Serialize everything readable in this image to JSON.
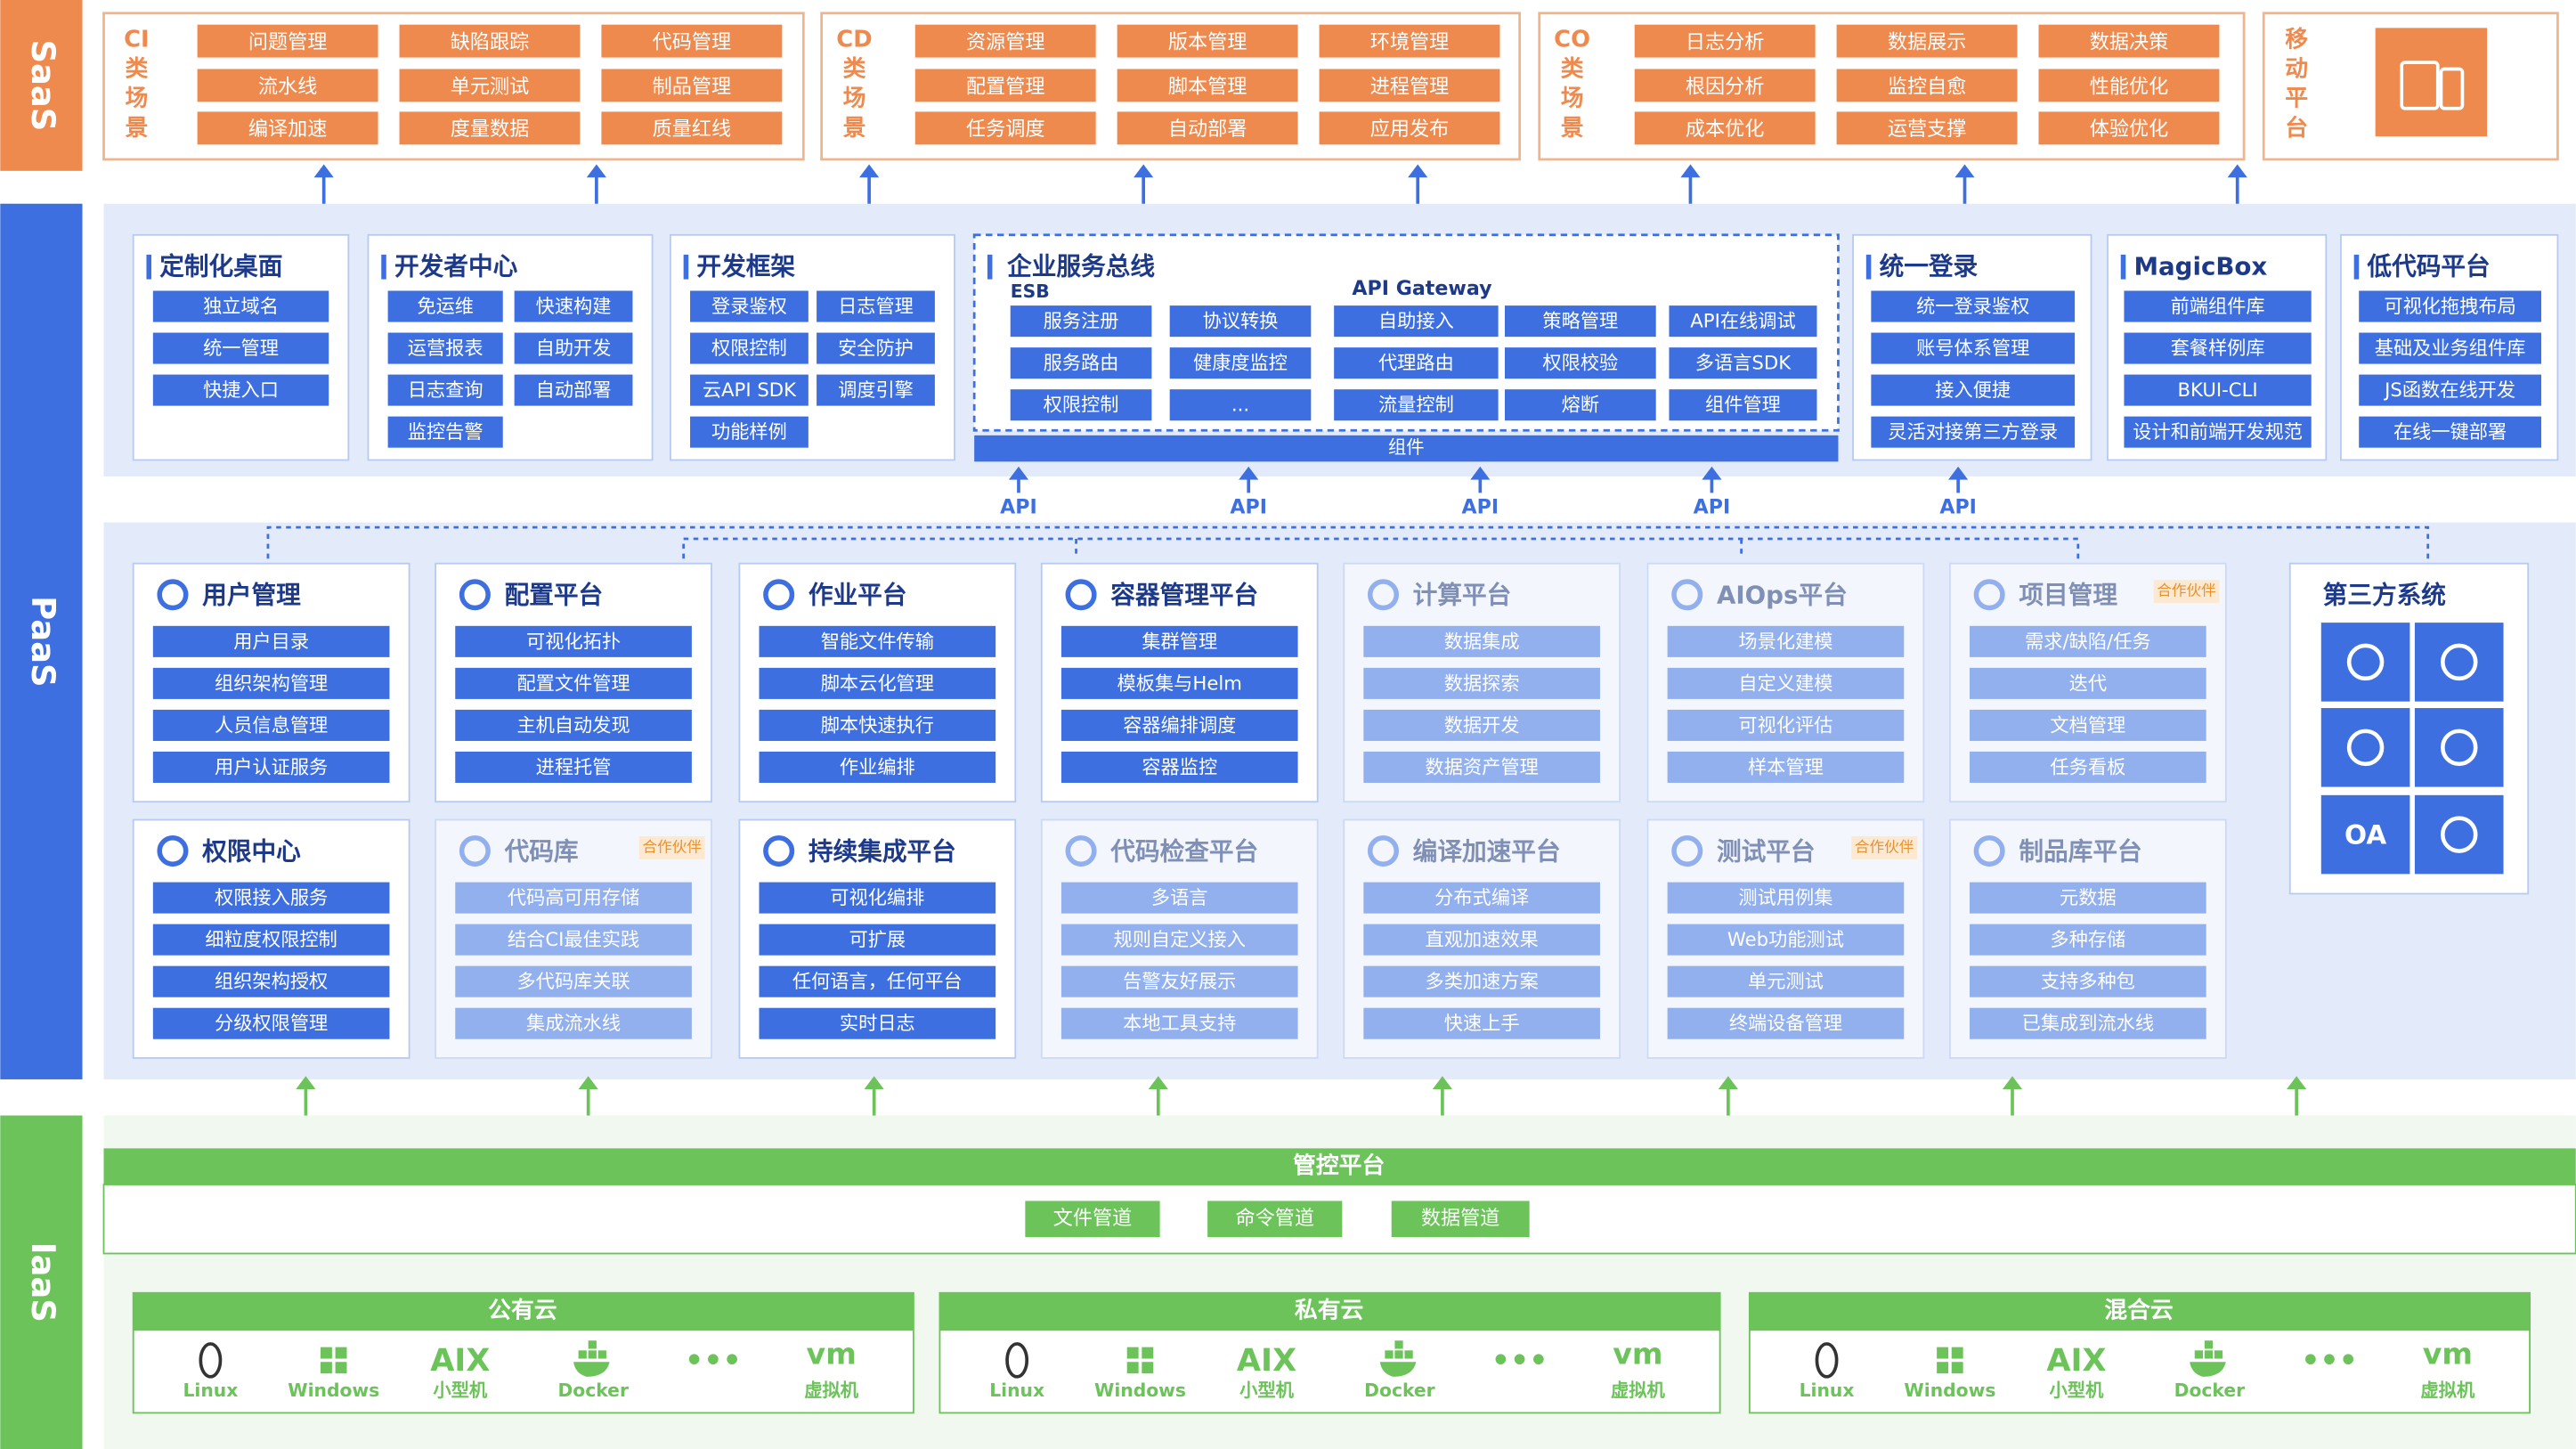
{
  "layers": {
    "saas": "SaaS",
    "paas": "PaaS",
    "iaas": "IaaS"
  },
  "saas": [
    {
      "label": "CI类场景",
      "items": [
        "问题管理",
        "缺陷跟踪",
        "代码管理",
        "流水线",
        "单元测试",
        "制品管理",
        "编译加速",
        "度量数据",
        "质量红线"
      ]
    },
    {
      "label": "CD类场景",
      "items": [
        "资源管理",
        "版本管理",
        "环境管理",
        "配置管理",
        "脚本管理",
        "进程管理",
        "任务调度",
        "自动部署",
        "应用发布"
      ]
    },
    {
      "label": "CO类场景",
      "items": [
        "日志分析",
        "数据展示",
        "数据决策",
        "根因分析",
        "监控自愈",
        "性能优化",
        "成本优化",
        "运营支撑",
        "体验优化"
      ]
    },
    {
      "label": "移动平台"
    }
  ],
  "paas_top": [
    {
      "title": "定制化桌面",
      "items": [
        "独立域名",
        "统一管理",
        "快捷入口"
      ]
    },
    {
      "title": "开发者中心",
      "items": [
        "免运维",
        "快速构建",
        "运营报表",
        "自助开发",
        "日志查询",
        "自动部署",
        "监控告警"
      ]
    },
    {
      "title": "开发框架",
      "items": [
        "登录鉴权",
        "日志管理",
        "权限控制",
        "安全防护",
        "云API SDK",
        "调度引擎",
        "功能样例"
      ]
    },
    {
      "title": "统一登录",
      "items": [
        "统一登录鉴权",
        "账号体系管理",
        "接入便捷",
        "灵活对接第三方登录"
      ]
    },
    {
      "title": "MagicBox",
      "items": [
        "前端组件库",
        "套餐样例库",
        "BKUI-CLI",
        "设计和前端开发规范"
      ]
    },
    {
      "title": "低代码平台",
      "items": [
        "可视化拖拽布局",
        "基础及业务组件库",
        "JS函数在线开发",
        "在线一键部署"
      ]
    }
  ],
  "service_bus": {
    "title": "企业服务总线",
    "esb": {
      "label": "ESB",
      "items": [
        "服务注册",
        "协议转换",
        "服务路由",
        "健康度监控",
        "权限控制",
        "..."
      ]
    },
    "gateway": {
      "label": "API Gateway",
      "items": [
        "自助接入",
        "策略管理",
        "API在线调试",
        "代理路由",
        "权限校验",
        "多语言SDK",
        "流量控制",
        "熔断",
        "组件管理"
      ]
    },
    "footer": "组件"
  },
  "api_labels": [
    "API",
    "API",
    "API",
    "API",
    "API"
  ],
  "modules": [
    {
      "title": "用户管理",
      "items": [
        "用户目录",
        "组织架构管理",
        "人员信息管理",
        "用户认证服务"
      ]
    },
    {
      "title": "配置平台",
      "items": [
        "可视化拓扑",
        "配置文件管理",
        "主机自动发现",
        "进程托管"
      ]
    },
    {
      "title": "作业平台",
      "items": [
        "智能文件传输",
        "脚本云化管理",
        "脚本快速执行",
        "作业编排"
      ]
    },
    {
      "title": "容器管理平台",
      "items": [
        "集群管理",
        "模板集与Helm",
        "容器编排调度",
        "容器监控"
      ]
    },
    {
      "title": "计算平台",
      "items": [
        "数据集成",
        "数据探索",
        "数据开发",
        "数据资产管理"
      ]
    },
    {
      "title": "AIOps平台",
      "items": [
        "场景化建模",
        "自定义建模",
        "可视化评估",
        "样本管理"
      ]
    },
    {
      "title": "项目管理",
      "tag": "合作伙伴",
      "items": [
        "需求/缺陷/任务",
        "迭代",
        "文档管理",
        "任务看板"
      ]
    },
    {
      "title": "权限中心",
      "items": [
        "权限接入服务",
        "细粒度权限控制",
        "组织架构授权",
        "分级权限管理"
      ]
    },
    {
      "title": "代码库",
      "tag": "合作伙伴",
      "items": [
        "代码高可用存储",
        "结合CI最佳实践",
        "多代码库关联",
        "集成流水线"
      ]
    },
    {
      "title": "持续集成平台",
      "items": [
        "可视化编排",
        "可扩展",
        "任何语言，任何平台",
        "实时日志"
      ]
    },
    {
      "title": "代码检查平台",
      "items": [
        "多语言",
        "规则自定义接入",
        "告警友好展示",
        "本地工具支持"
      ]
    },
    {
      "title": "编译加速平台",
      "items": [
        "分布式编译",
        "直观加速效果",
        "多类加速方案",
        "快速上手"
      ]
    },
    {
      "title": "测试平台",
      "tag": "合作伙伴",
      "items": [
        "测试用例集",
        "Web功能测试",
        "单元测试",
        "终端设备管理"
      ]
    },
    {
      "title": "制品库平台",
      "items": [
        "元数据",
        "多种存储",
        "支持多种包",
        "已集成到流水线"
      ]
    }
  ],
  "third_party": {
    "title": "第三方系统",
    "oa": "OA"
  },
  "iaas": {
    "control": "管控平台",
    "pipes": [
      "文件管道",
      "命令管道",
      "数据管道"
    ],
    "clouds": [
      {
        "name": "公有云",
        "items": [
          {
            "label": "Linux"
          },
          {
            "label": "Windows"
          },
          {
            "logo": "AIX",
            "label": "小型机"
          },
          {
            "label": "Docker"
          },
          {
            "logo": "•••"
          },
          {
            "logo": "vm",
            "label": "虚拟机"
          }
        ]
      },
      {
        "name": "私有云",
        "items": [
          {
            "label": "Linux"
          },
          {
            "label": "Windows"
          },
          {
            "logo": "AIX",
            "label": "小型机"
          },
          {
            "label": "Docker"
          },
          {
            "logo": "•••"
          },
          {
            "logo": "vm",
            "label": "虚拟机"
          }
        ]
      },
      {
        "name": "混合云",
        "items": [
          {
            "label": "Linux"
          },
          {
            "label": "Windows"
          },
          {
            "logo": "AIX",
            "label": "小型机"
          },
          {
            "label": "Docker"
          },
          {
            "logo": "•••"
          },
          {
            "logo": "vm",
            "label": "虚拟机"
          }
        ]
      }
    ]
  }
}
